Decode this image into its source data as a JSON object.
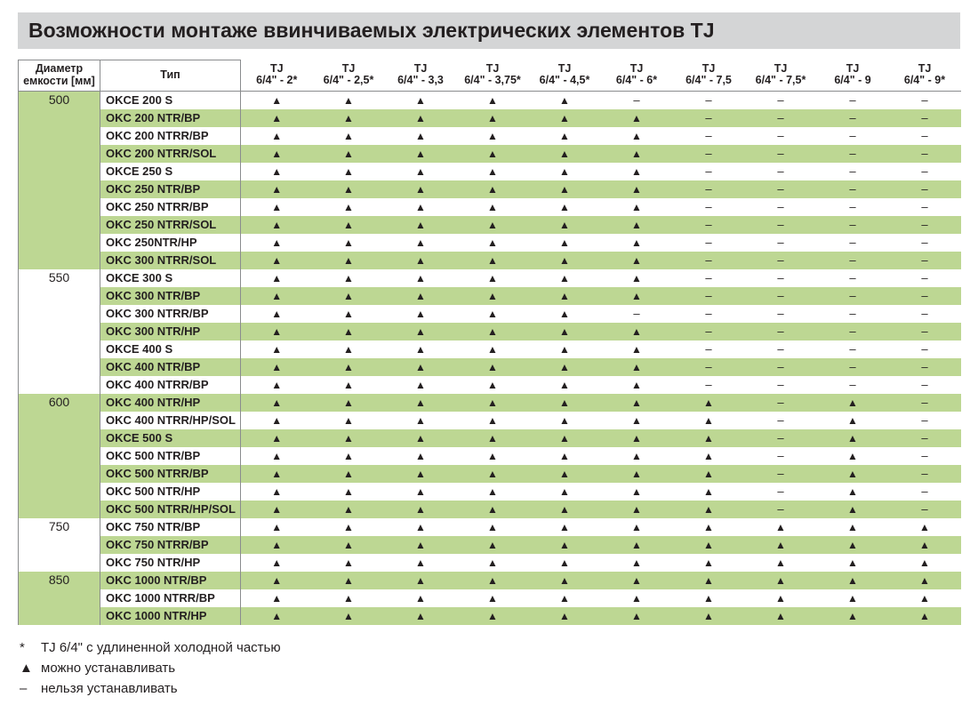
{
  "title": "Возможности монтаже ввинчиваемых электрических элементов TJ",
  "headers": {
    "diameter_l1": "Диаметр",
    "diameter_l2": "емкости [мм]",
    "type": "Тип",
    "tj_top": "TJ",
    "tj_cols": [
      "6/4\" - 2*",
      "6/4\" - 2,5*",
      "6/4\" - 3,3",
      "6/4\" - 3,75*",
      "6/4\" - 4,5*",
      "6/4\" - 6*",
      "6/4\" - 7,5",
      "6/4\" - 7,5*",
      "6/4\" - 9",
      "6/4\" - 9*"
    ]
  },
  "symbols": {
    "yes": "▲",
    "no": "–"
  },
  "colors": {
    "header_bg": "#d4d5d6",
    "row_shade": "#bdd793",
    "border": "#8a8c8e",
    "text": "#231f20"
  },
  "groups": [
    {
      "diameter": "500",
      "diam_shade": true,
      "rows": [
        {
          "type": "OKCE 200 S",
          "shade": false,
          "v": [
            1,
            1,
            1,
            1,
            1,
            0,
            0,
            0,
            0,
            0
          ]
        },
        {
          "type": "OKC 200 NTR/BP",
          "shade": true,
          "v": [
            1,
            1,
            1,
            1,
            1,
            1,
            0,
            0,
            0,
            0
          ]
        },
        {
          "type": "OKC 200 NTRR/BP",
          "shade": false,
          "v": [
            1,
            1,
            1,
            1,
            1,
            1,
            0,
            0,
            0,
            0
          ]
        },
        {
          "type": "OKC 200 NTRR/SOL",
          "shade": true,
          "v": [
            1,
            1,
            1,
            1,
            1,
            1,
            0,
            0,
            0,
            0
          ]
        },
        {
          "type": "OKCE 250 S",
          "shade": false,
          "v": [
            1,
            1,
            1,
            1,
            1,
            1,
            0,
            0,
            0,
            0
          ]
        },
        {
          "type": "OKC 250 NTR/BP",
          "shade": true,
          "v": [
            1,
            1,
            1,
            1,
            1,
            1,
            0,
            0,
            0,
            0
          ]
        },
        {
          "type": "OKC 250 NTRR/BP",
          "shade": false,
          "v": [
            1,
            1,
            1,
            1,
            1,
            1,
            0,
            0,
            0,
            0
          ]
        },
        {
          "type": "OKC 250 NTRR/SOL",
          "shade": true,
          "v": [
            1,
            1,
            1,
            1,
            1,
            1,
            0,
            0,
            0,
            0
          ]
        },
        {
          "type": "OKC 250NTR/HP",
          "shade": false,
          "v": [
            1,
            1,
            1,
            1,
            1,
            1,
            0,
            0,
            0,
            0
          ]
        },
        {
          "type": "OKC 300 NTRR/SOL",
          "shade": true,
          "v": [
            1,
            1,
            1,
            1,
            1,
            1,
            0,
            0,
            0,
            0
          ]
        }
      ]
    },
    {
      "diameter": "550",
      "diam_shade": false,
      "rows": [
        {
          "type": "OKCE 300 S",
          "shade": false,
          "v": [
            1,
            1,
            1,
            1,
            1,
            1,
            0,
            0,
            0,
            0
          ]
        },
        {
          "type": "OKC 300 NTR/BP",
          "shade": true,
          "v": [
            1,
            1,
            1,
            1,
            1,
            1,
            0,
            0,
            0,
            0
          ]
        },
        {
          "type": "OKC 300 NTRR/BP",
          "shade": false,
          "v": [
            1,
            1,
            1,
            1,
            1,
            0,
            0,
            0,
            0,
            0
          ]
        },
        {
          "type": "OKC 300 NTR/HP",
          "shade": true,
          "v": [
            1,
            1,
            1,
            1,
            1,
            1,
            0,
            0,
            0,
            0
          ]
        },
        {
          "type": "OKCE 400 S",
          "shade": false,
          "v": [
            1,
            1,
            1,
            1,
            1,
            1,
            0,
            0,
            0,
            0
          ]
        },
        {
          "type": "OKC 400 NTR/BP",
          "shade": true,
          "v": [
            1,
            1,
            1,
            1,
            1,
            1,
            0,
            0,
            0,
            0
          ]
        },
        {
          "type": "OKC 400 NTRR/BP",
          "shade": false,
          "v": [
            1,
            1,
            1,
            1,
            1,
            1,
            0,
            0,
            0,
            0
          ]
        }
      ]
    },
    {
      "diameter": "600",
      "diam_shade": true,
      "rows": [
        {
          "type": "OKC 400 NTR/HP",
          "shade": true,
          "v": [
            1,
            1,
            1,
            1,
            1,
            1,
            1,
            0,
            1,
            0
          ]
        },
        {
          "type": "OKC 400 NTRR/HP/SOL",
          "shade": false,
          "v": [
            1,
            1,
            1,
            1,
            1,
            1,
            1,
            0,
            1,
            0
          ]
        },
        {
          "type": "OKCE 500 S",
          "shade": true,
          "v": [
            1,
            1,
            1,
            1,
            1,
            1,
            1,
            0,
            1,
            0
          ]
        },
        {
          "type": "OKC 500 NTR/BP",
          "shade": false,
          "v": [
            1,
            1,
            1,
            1,
            1,
            1,
            1,
            0,
            1,
            0
          ]
        },
        {
          "type": "OKC 500 NTRR/BP",
          "shade": true,
          "v": [
            1,
            1,
            1,
            1,
            1,
            1,
            1,
            0,
            1,
            0
          ]
        },
        {
          "type": "OKC 500 NTR/HP",
          "shade": false,
          "v": [
            1,
            1,
            1,
            1,
            1,
            1,
            1,
            0,
            1,
            0
          ]
        },
        {
          "type": "OKC 500 NTRR/HP/SOL",
          "shade": true,
          "v": [
            1,
            1,
            1,
            1,
            1,
            1,
            1,
            0,
            1,
            0
          ]
        }
      ]
    },
    {
      "diameter": "750",
      "diam_shade": false,
      "rows": [
        {
          "type": "OKC 750 NTR/BP",
          "shade": false,
          "v": [
            1,
            1,
            1,
            1,
            1,
            1,
            1,
            1,
            1,
            1
          ]
        },
        {
          "type": "OKC 750 NTRR/BP",
          "shade": true,
          "v": [
            1,
            1,
            1,
            1,
            1,
            1,
            1,
            1,
            1,
            1
          ]
        },
        {
          "type": "OKC 750 NTR/HP",
          "shade": false,
          "v": [
            1,
            1,
            1,
            1,
            1,
            1,
            1,
            1,
            1,
            1
          ]
        }
      ]
    },
    {
      "diameter": "850",
      "diam_shade": true,
      "rows": [
        {
          "type": "OKC 1000 NTR/BP",
          "shade": true,
          "v": [
            1,
            1,
            1,
            1,
            1,
            1,
            1,
            1,
            1,
            1
          ]
        },
        {
          "type": "OKC 1000 NTRR/BP",
          "shade": false,
          "v": [
            1,
            1,
            1,
            1,
            1,
            1,
            1,
            1,
            1,
            1
          ]
        },
        {
          "type": "OKC 1000 NTR/HP",
          "shade": true,
          "v": [
            1,
            1,
            1,
            1,
            1,
            1,
            1,
            1,
            1,
            1
          ]
        }
      ]
    }
  ],
  "legend": [
    {
      "sym": "*",
      "text": "TJ 6/4\" с удлиненной холодной частью"
    },
    {
      "sym": "▲",
      "text": "можно устанавливать"
    },
    {
      "sym": "–",
      "text": "нельзя устанавливать"
    }
  ]
}
